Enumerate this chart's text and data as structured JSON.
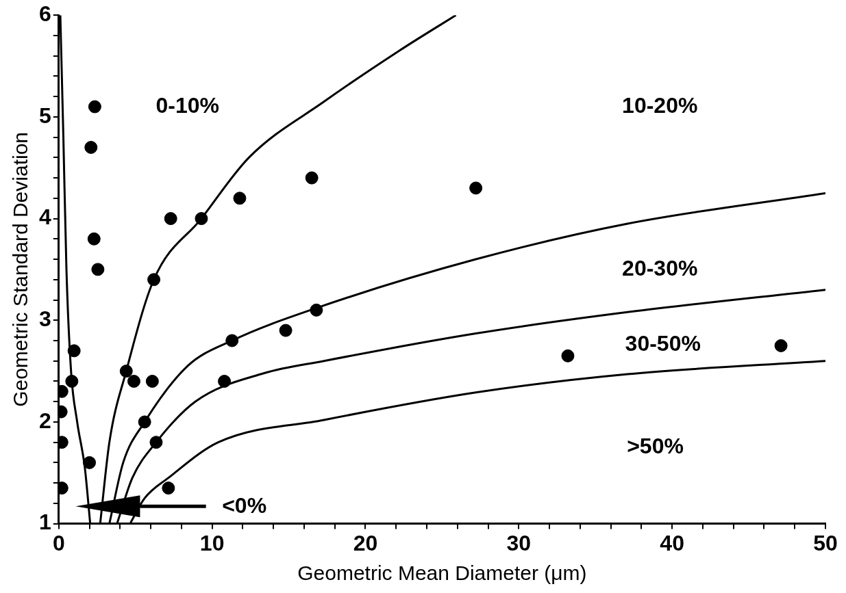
{
  "chart_data": {
    "type": "scatter",
    "xlabel": "Geometric Mean Diameter (μm)",
    "ylabel": "Geometric Standard Deviation",
    "xlim": [
      0,
      50
    ],
    "ylim": [
      1,
      6
    ],
    "xticks": [
      0,
      {
        "value": 2,
        "label": null
      },
      {
        "value": 4,
        "label": null
      },
      {
        "value": 6,
        "label": null
      },
      {
        "value": 8,
        "label": null
      },
      10,
      {
        "value": 12,
        "label": null
      },
      {
        "value": 14,
        "label": null
      },
      {
        "value": 16,
        "label": null
      },
      {
        "value": 18,
        "label": null
      },
      20,
      {
        "value": 22,
        "label": null
      },
      {
        "value": 24,
        "label": null
      },
      {
        "value": 26,
        "label": null
      },
      {
        "value": 28,
        "label": null
      },
      30,
      {
        "value": 32,
        "label": null
      },
      {
        "value": 34,
        "label": null
      },
      {
        "value": 36,
        "label": null
      },
      {
        "value": 38,
        "label": null
      },
      40,
      {
        "value": 42,
        "label": null
      },
      {
        "value": 44,
        "label": null
      },
      {
        "value": 46,
        "label": null
      },
      {
        "value": 48,
        "label": null
      },
      50
    ],
    "yticks": [
      1,
      {
        "value": 1.2,
        "label": null
      },
      {
        "value": 1.4,
        "label": null
      },
      {
        "value": 1.6,
        "label": null
      },
      {
        "value": 1.8,
        "label": null
      },
      2,
      {
        "value": 2.2,
        "label": null
      },
      {
        "value": 2.4,
        "label": null
      },
      {
        "value": 2.6,
        "label": null
      },
      {
        "value": 2.8,
        "label": null
      },
      3,
      {
        "value": 3.2,
        "label": null
      },
      {
        "value": 3.4,
        "label": null
      },
      {
        "value": 3.6,
        "label": null
      },
      {
        "value": 3.8,
        "label": null
      },
      4,
      {
        "value": 4.2,
        "label": null
      },
      {
        "value": 4.4,
        "label": null
      },
      {
        "value": 4.6,
        "label": null
      },
      {
        "value": 4.8,
        "label": null
      },
      5,
      {
        "value": 5.2,
        "label": null
      },
      {
        "value": 5.4,
        "label": null
      },
      {
        "value": 5.6,
        "label": null
      },
      {
        "value": 5.8,
        "label": null
      },
      6
    ],
    "grid": false,
    "legend": false,
    "series": [
      {
        "marker": "circle",
        "color": "#000000",
        "x": [
          2.35,
          2.1,
          2.3,
          2.55,
          6.2,
          7.3,
          9.3,
          11.8,
          16.5,
          1.0,
          0.85,
          0.2,
          0.15,
          0.2,
          0.2,
          2.0,
          4.4,
          4.9,
          6.1,
          10.8,
          11.3,
          14.8,
          16.8,
          5.6,
          6.35,
          7.15,
          27.2,
          33.2,
          47.1
        ],
        "values": [
          5.1,
          4.7,
          3.8,
          3.5,
          3.4,
          4.0,
          4.0,
          4.2,
          4.4,
          2.7,
          2.4,
          2.3,
          2.1,
          1.8,
          1.35,
          1.6,
          2.5,
          2.4,
          2.4,
          2.4,
          2.8,
          2.9,
          3.1,
          2.0,
          1.8,
          1.35,
          4.3,
          2.65,
          2.75
        ]
      },
      {
        "type": "line",
        "marker": "none",
        "line_style": "solid",
        "color": "#000000",
        "x": [
          0.1,
          0.3,
          0.5,
          0.8,
          1.2,
          1.7,
          2.05
        ],
        "values": [
          6,
          4.8,
          3.5,
          2.5,
          2.0,
          1.55,
          1
        ]
      },
      {
        "type": "line",
        "marker": "none",
        "line_style": "solid",
        "color": "#000000",
        "x": [
          2.7,
          3.3,
          4.4,
          6.2,
          9.3,
          12.4,
          17.3,
          22.2,
          25.9
        ],
        "values": [
          1,
          1.8,
          2.5,
          3.4,
          4.0,
          4.6,
          5.15,
          5.65,
          6
        ]
      },
      {
        "type": "line",
        "marker": "none",
        "line_style": "solid",
        "color": "#000000",
        "x": [
          3.3,
          4.2,
          5.6,
          8.4,
          11.3,
          16.8,
          27.2,
          37.1,
          50
        ],
        "values": [
          1,
          1.6,
          2.0,
          2.55,
          2.8,
          3.12,
          3.6,
          3.95,
          4.25
        ]
      },
      {
        "type": "line",
        "marker": "none",
        "line_style": "solid",
        "color": "#000000",
        "x": [
          3.8,
          4.8,
          6.35,
          8.9,
          13.4,
          17.3,
          27.2,
          37.1,
          50
        ],
        "values": [
          1,
          1.45,
          1.8,
          2.2,
          2.48,
          2.6,
          2.87,
          3.08,
          3.3
        ]
      },
      {
        "type": "line",
        "marker": "none",
        "line_style": "solid",
        "color": "#000000",
        "x": [
          4.65,
          5.6,
          7.15,
          10.4,
          17.3,
          27.2,
          37.1,
          50
        ],
        "values": [
          1,
          1.25,
          1.45,
          1.8,
          2.02,
          2.29,
          2.47,
          2.6
        ]
      }
    ],
    "annotations": [
      "0-10%",
      "10-20%",
      "20-30%",
      "30-50%",
      ">50%",
      "<0%"
    ]
  }
}
